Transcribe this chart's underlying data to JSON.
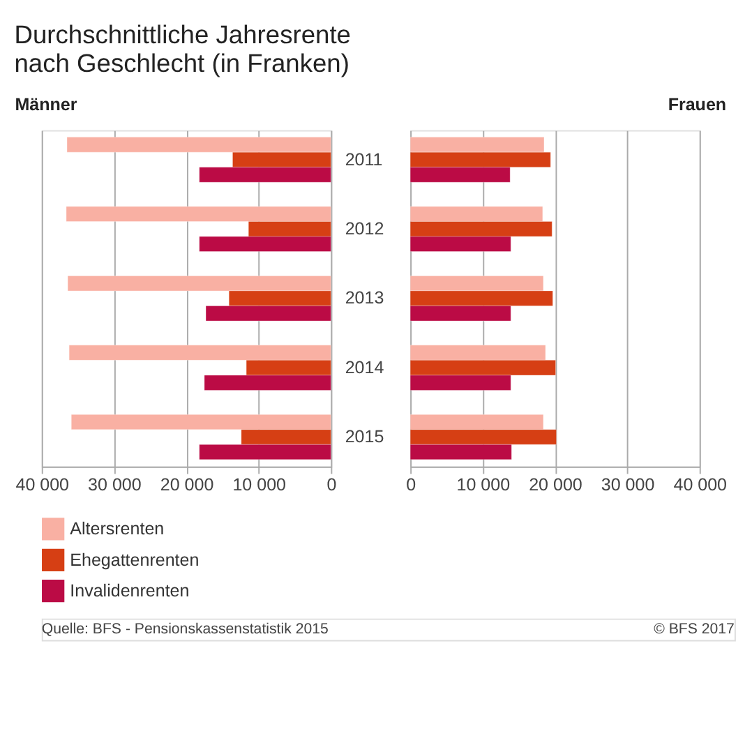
{
  "chart_data": [
    {
      "type": "bar",
      "orientation": "horizontal",
      "title": "Durchschnittliche Jahresrente\nnach Geschlecht (in Franken)",
      "subtitle": "Männer",
      "categories": [
        "2011",
        "2012",
        "2013",
        "2014",
        "2015"
      ],
      "xlim": [
        40000,
        0
      ],
      "xticks": [
        {
          "value": 40000,
          "label": "40 000"
        },
        {
          "value": 30000,
          "label": "30 000"
        },
        {
          "value": 20000,
          "label": "20 000"
        },
        {
          "value": 10000,
          "label": "10 000"
        },
        0
      ],
      "grid": "x",
      "legend": "bottom",
      "series": [
        {
          "name": "Altersrenten",
          "color": "#f9b0a3",
          "values": [
            36500,
            36600,
            36400,
            36200,
            35900
          ]
        },
        {
          "name": "Ehegattenrenten",
          "color": "#d63f14",
          "values": [
            13600,
            11400,
            14100,
            11700,
            12400
          ]
        },
        {
          "name": "Invalidenrenten",
          "color": "#bb0b45",
          "values": [
            18200,
            18200,
            17300,
            17500,
            18200
          ]
        }
      ],
      "annotations": [
        "Quelle: BFS - Pensionskassenstatistik 2015",
        "© BFS 2017"
      ]
    },
    {
      "type": "bar",
      "orientation": "horizontal",
      "subtitle": "Frauen",
      "categories": [
        "2011",
        "2012",
        "2013",
        "2014",
        "2015"
      ],
      "xlim": [
        0,
        40000
      ],
      "xticks": [
        0,
        {
          "value": 10000,
          "label": "10 000"
        },
        {
          "value": 20000,
          "label": "20 000"
        },
        {
          "value": 30000,
          "label": "30 000"
        },
        {
          "value": 40000,
          "label": "40 000"
        }
      ],
      "grid": "x",
      "tick_labels": "x",
      "series": [
        {
          "color": "#f9b0a3",
          "values": [
            18500,
            18300,
            18400,
            18700,
            18400
          ]
        },
        {
          "color": "#d63f14",
          "values": [
            19400,
            19600,
            19700,
            20100,
            20200
          ]
        },
        {
          "color": "#bb0b45",
          "values": [
            13800,
            13900,
            13900,
            13900,
            14000
          ]
        }
      ]
    }
  ]
}
